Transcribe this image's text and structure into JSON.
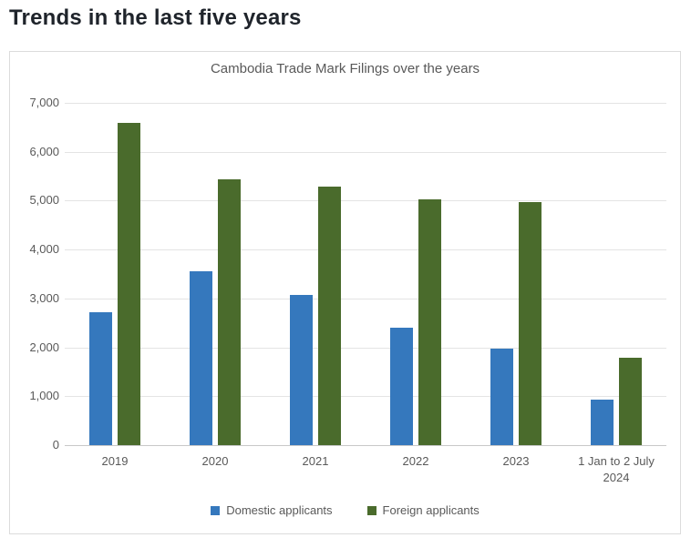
{
  "page": {
    "title": "Trends in the last five years"
  },
  "chart_data": {
    "type": "bar",
    "title": "Cambodia Trade Mark Filings over the years",
    "categories": [
      "2019",
      "2020",
      "2021",
      "2022",
      "2023",
      "1 Jan to 2 July 2024"
    ],
    "series": [
      {
        "name": "Domestic applicants",
        "color": "#3578bd",
        "values": [
          2720,
          3560,
          3070,
          2400,
          1980,
          930
        ]
      },
      {
        "name": "Foreign applicants",
        "color": "#4a6b2c",
        "values": [
          6600,
          5440,
          5290,
          5030,
          4970,
          1780
        ]
      }
    ],
    "xlabel": "",
    "ylabel": "",
    "ylim": [
      0,
      7000
    ],
    "y_tick_step": 1000,
    "y_tick_labels": [
      "0",
      "1,000",
      "2,000",
      "3,000",
      "4,000",
      "5,000",
      "6,000",
      "7,000"
    ],
    "grid": true,
    "legend_position": "bottom"
  },
  "colors": {
    "page_title_text": "#1f242b",
    "chart_text": "#595959",
    "card_border": "#dcdcdc",
    "gridline": "#e4e4e4",
    "axis_line": "#c8c8c8",
    "domestic_bar": "#3578bd",
    "foreign_bar": "#4a6b2c"
  }
}
